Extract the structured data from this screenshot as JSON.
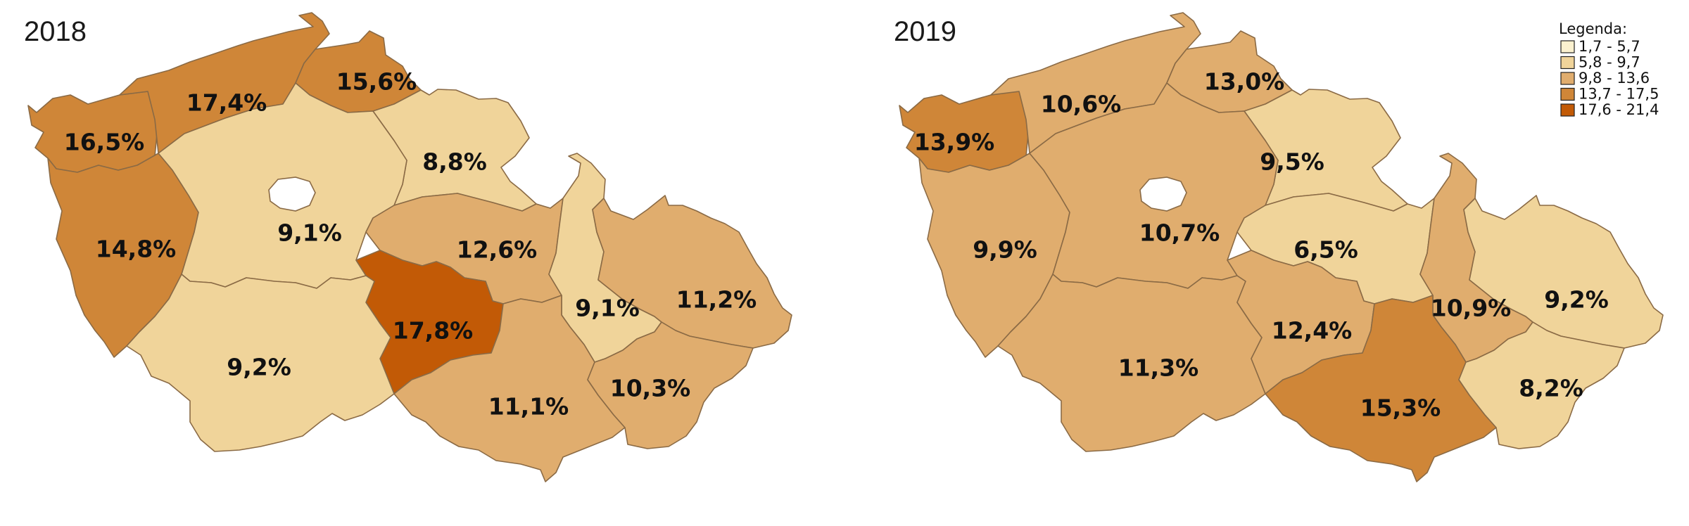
{
  "legend": {
    "title": "Legenda:",
    "classes": [
      {
        "label": "1,7 - 5,7",
        "color": "#fbf1cf"
      },
      {
        "label": "5,8 - 9,7",
        "color": "#f0d49a"
      },
      {
        "label": "9,8 - 13,6",
        "color": "#e0ad6e"
      },
      {
        "label": "13,7 - 17,5",
        "color": "#cf8638"
      },
      {
        "label": "17,6 - 21,4",
        "color": "#c25a06"
      }
    ]
  },
  "maps": [
    {
      "year": "2018",
      "regions": [
        {
          "id": "karlovarsky",
          "value": "16,5%",
          "cls": 3
        },
        {
          "id": "ustecky",
          "value": "17,4%",
          "cls": 3
        },
        {
          "id": "liberecky",
          "value": "15,6%",
          "cls": 3
        },
        {
          "id": "kralovehradecky",
          "value": "8,8%",
          "cls": 1
        },
        {
          "id": "plzensky",
          "value": "14,8%",
          "cls": 3
        },
        {
          "id": "stredocesky",
          "value": "9,1%",
          "cls": 1
        },
        {
          "id": "pardubicky",
          "value": "12,6%",
          "cls": 2
        },
        {
          "id": "vysocina",
          "value": "17,8%",
          "cls": 4
        },
        {
          "id": "olomoucky",
          "value": "9,1%",
          "cls": 1
        },
        {
          "id": "moravskoslezsky",
          "value": "11,2%",
          "cls": 2
        },
        {
          "id": "jihocesky",
          "value": "9,2%",
          "cls": 1
        },
        {
          "id": "jihomoravsky",
          "value": "11,1%",
          "cls": 2
        },
        {
          "id": "zlinsky",
          "value": "10,3%",
          "cls": 2
        }
      ]
    },
    {
      "year": "2019",
      "regions": [
        {
          "id": "karlovarsky",
          "value": "13,9%",
          "cls": 3
        },
        {
          "id": "ustecky",
          "value": "10,6%",
          "cls": 2
        },
        {
          "id": "liberecky",
          "value": "13,0%",
          "cls": 2
        },
        {
          "id": "kralovehradecky",
          "value": "9,5%",
          "cls": 1
        },
        {
          "id": "plzensky",
          "value": "9,9%",
          "cls": 2
        },
        {
          "id": "stredocesky",
          "value": "10,7%",
          "cls": 2
        },
        {
          "id": "pardubicky",
          "value": "6,5%",
          "cls": 1
        },
        {
          "id": "olomoucky",
          "value": "10,9%",
          "cls": 2
        },
        {
          "id": "moravskoslezsky",
          "value": "9,2%",
          "cls": 1
        },
        {
          "id": "jihocesky",
          "value": "11,3%",
          "cls": 2
        },
        {
          "id": "vysocina",
          "value": "12,4%",
          "cls": 2
        },
        {
          "id": "jihomoravsky",
          "value": "15,3%",
          "cls": 3
        },
        {
          "id": "zlinsky",
          "value": "8,2%",
          "cls": 1
        }
      ]
    }
  ]
}
